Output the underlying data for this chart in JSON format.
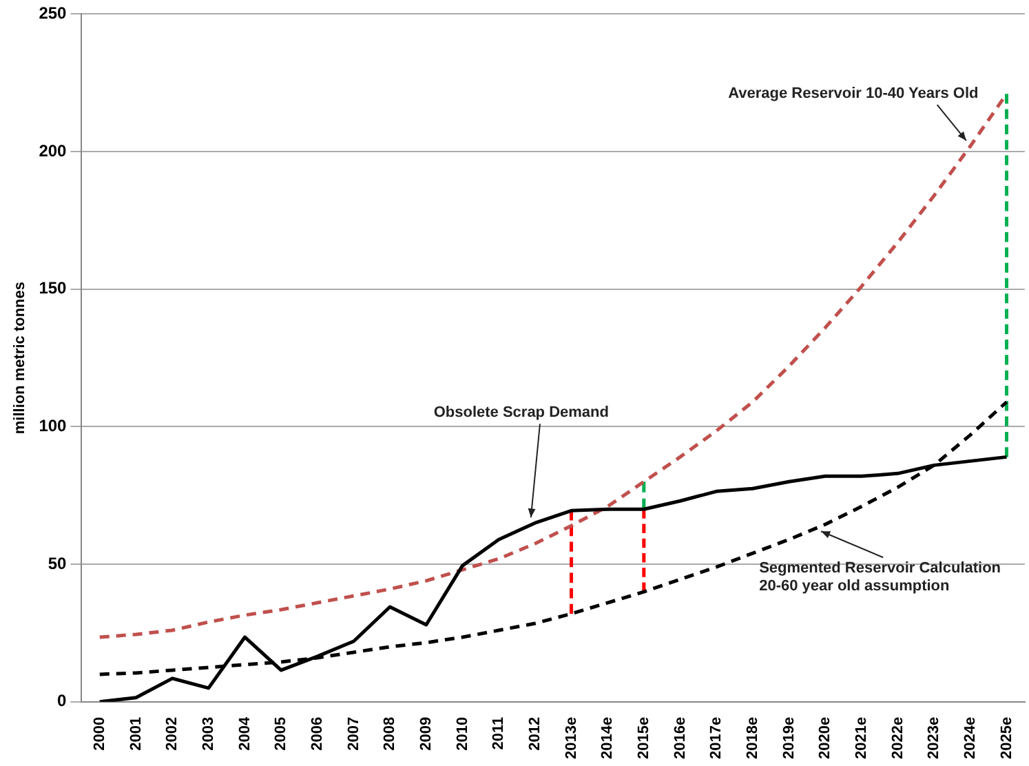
{
  "chart_data": {
    "type": "line",
    "ylabel": "million metric tonnes",
    "categories": [
      "2000",
      "2001",
      "2002",
      "2003",
      "2004",
      "2005",
      "2006",
      "2007",
      "2008",
      "2009",
      "2010",
      "2011",
      "2012",
      "2013e",
      "2014e",
      "2015e",
      "2016e",
      "2017e",
      "2018e",
      "2019e",
      "2020e",
      "2021e",
      "2022e",
      "2023e",
      "2024e",
      "2025e"
    ],
    "series": [
      {
        "name": "Obsolete Scrap Demand",
        "color": "#000000",
        "line_style": "solid",
        "values": [
          0,
          1.5,
          8.5,
          5,
          23.5,
          11.5,
          16.5,
          22,
          34.5,
          28,
          49.5,
          59,
          65,
          69.5,
          70,
          70,
          73,
          76.5,
          77.5,
          80,
          82,
          82,
          83,
          86,
          87.5,
          89
        ]
      },
      {
        "name": "Average Reservoir 10-40 Years Old",
        "color": "#c0504d",
        "line_style": "dashed",
        "values": [
          23.5,
          24.5,
          26,
          29,
          31.5,
          33.5,
          36,
          38.5,
          41,
          44,
          48,
          52,
          57.5,
          64,
          71,
          80,
          89,
          98.5,
          109,
          122,
          136,
          151,
          167,
          184,
          202,
          221
        ]
      },
      {
        "name": "Segmented Reservoir Calculation 20-60 year old assumption",
        "color": "#000000",
        "line_style": "dashed",
        "values": [
          10,
          10.5,
          11.5,
          12.5,
          13.5,
          14.5,
          16,
          18,
          20,
          21.5,
          23.5,
          26,
          28.5,
          32,
          36,
          40,
          44.5,
          49,
          54,
          59,
          64.5,
          71,
          78,
          86,
          97,
          109
        ]
      },
      {
        "color": "#ff0000",
        "line_style": "dashed",
        "x": [
          "2013e",
          "2013e"
        ],
        "values": [
          69.5,
          32
        ]
      },
      {
        "color": "#ff0000",
        "line_style": "dashed",
        "x": [
          "2015e",
          "2015e"
        ],
        "values": [
          70,
          40
        ]
      },
      {
        "color": "#00b050",
        "line_style": "dashed",
        "x": [
          "2015e",
          "2015e"
        ],
        "values": [
          70,
          80
        ]
      },
      {
        "color": "#00b050",
        "line_style": "dashed",
        "x": [
          "2025e",
          "2025e"
        ],
        "values": [
          89,
          221
        ]
      }
    ],
    "ylim": [
      0,
      250
    ],
    "yticks": [
      0,
      50,
      100,
      150,
      200,
      250
    ],
    "grid": "y",
    "legend": false,
    "marker": "none"
  }
}
